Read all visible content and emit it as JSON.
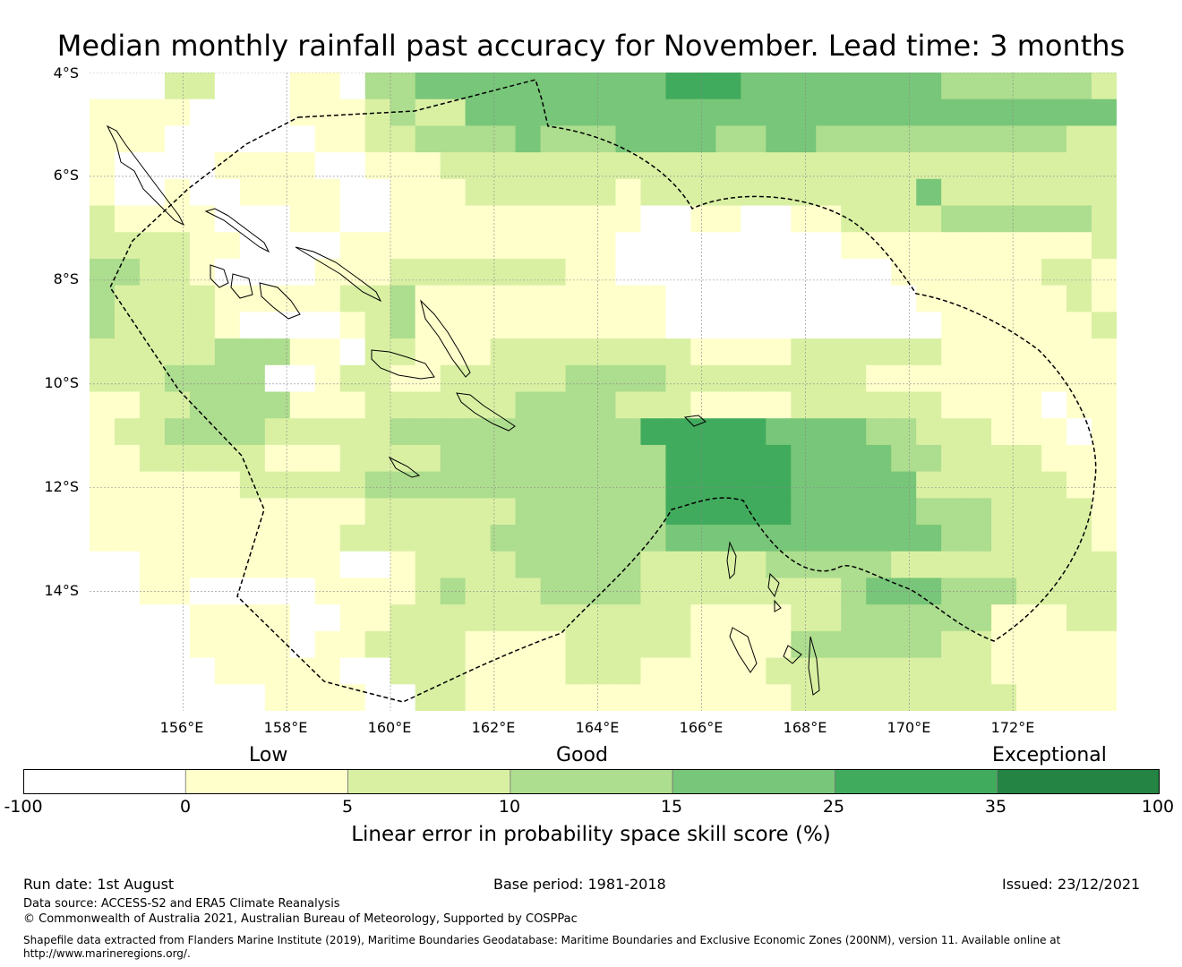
{
  "title": "Median monthly rainfall past accuracy for November. Lead time: 3 months",
  "axes": {
    "lat_labels": [
      "4°S",
      "6°S",
      "8°S",
      "10°S",
      "12°S",
      "14°S"
    ],
    "lon_labels": [
      "156°E",
      "158°E",
      "160°E",
      "162°E",
      "164°E",
      "166°E",
      "168°E",
      "170°E",
      "172°E"
    ],
    "lon_range": [
      154.2,
      174.0
    ],
    "lat_range": [
      -4.0,
      -16.3
    ]
  },
  "colorbar": {
    "category_labels": [
      "Low",
      "Good",
      "Exceptional"
    ],
    "tick_labels": [
      "-100",
      "0",
      "5",
      "10",
      "15",
      "25",
      "35",
      "100"
    ],
    "colors": [
      "#ffffff",
      "#ffffcc",
      "#d9f0a3",
      "#addd8e",
      "#78c679",
      "#41ab5d",
      "#238443"
    ],
    "label": "Linear error in probability space skill score (%)"
  },
  "footer": {
    "run_date": "Run date: 1st August",
    "base_period": "Base period: 1981-2018",
    "issued": "Issued: 23/12/2021",
    "data_source": "Data source: ACCESS-S2 and ERA5 Climate Reanalysis",
    "copyright": "© Commonwealth of Australia 2021, Australian Bureau of Meteorology, Supported by COSPPac",
    "shapefile_line1": "Shapefile data extracted from Flanders Marine Institute (2019), Maritime Boundaries Geodatabase: Maritime Boundaries and Exclusive Economic Zones (200NM), version 11. Available online at",
    "shapefile_line2": "http://www.marineregions.org/."
  },
  "map_data": {
    "description_columns": "skill category index per grid cell (0=white ... 6=darkest green), rows north to south, columns west to east",
    "rows": [
      "00022000110334444444444555444444443333332",
      "11110000111232244444444444444444444444444",
      "11100000011223333433344443344333333333322",
      "10000111100111222222222222222222222222222",
      "10010011110011122222212222222222242222222",
      "21111000110011111111110011001122223333332",
      "22221100001111111111100000000011111111112",
      "33221000011122222221100000000000111111221",
      "32222111112231111111111000000000011111121",
      "32222100001231111111111000000000001111112",
      "22222333110221112222222211112222221111111",
      "22233330012211222223333222222221111111111",
      "11223333111222222333322211112222221111011",
      "12233332222233333333335555544443322211101",
      "11222221112222333333333555554444332222111",
      "11111122222333333333333555554444422222211",
      "11111111111222222333333555554444433322221",
      "11111111112222223333333444444444443322221",
      "00111111110012222333332222233333222222222",
      "00110000011112322233332222222234443332222",
      "00001111001122222222222211112233333311122",
      "00001111011222211112222211113333332211111",
      "00000111110022211112221111122222222211111",
      "00000001111002211111111111112222222221111"
    ]
  }
}
